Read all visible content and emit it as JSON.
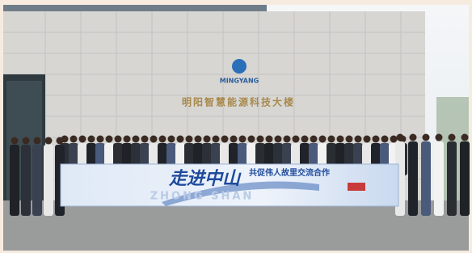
{
  "building": {
    "logo": "MINGYANG",
    "sign": "明阳智慧能源科技大楼"
  },
  "banner": {
    "title": "走进中山",
    "romanized": "ZHONG SHAN",
    "subtitle": "共促伟人故里交流合作"
  }
}
